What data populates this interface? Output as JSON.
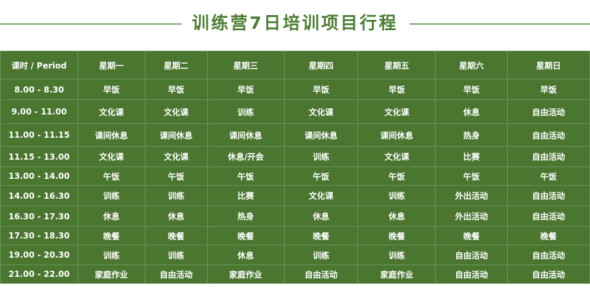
{
  "title": "训练营7日培训项目行程",
  "colors": {
    "table_bg": "#4a7630",
    "title": "#4c7f35"
  },
  "headers": [
    "课时 / Period",
    "星期一",
    "星期二",
    "星期三",
    "星期四",
    "星期五",
    "星期六",
    "星期日"
  ],
  "rows": [
    [
      "8.00 - 8.30",
      "早饭",
      "早饭",
      "早饭",
      "早饭",
      "早饭",
      "早饭",
      "早饭"
    ],
    [
      "9.00 - 11.00",
      "文化课",
      "文化课",
      "训练",
      "文化课",
      "文化课",
      "休息",
      "自由活动"
    ],
    [
      "11.00 - 11.15",
      "课间休息",
      "课间休息",
      "课间休息",
      "课间休息",
      "课间休息",
      "热身",
      "自由活动"
    ],
    [
      "11.15 - 13.00",
      "文化课",
      "文化课",
      "休息/开会",
      "训练",
      "文化课",
      "比赛",
      "自由活动"
    ],
    [
      "13.00 - 14.00",
      "午饭",
      "午饭",
      "午饭",
      "午饭",
      "午饭",
      "午饭",
      "午饭"
    ],
    [
      "14.00 - 16.30",
      "训练",
      "训练",
      "比赛",
      "文化课",
      "训练",
      "外出活动",
      "自由活动"
    ],
    [
      "16.30 - 17.30",
      "休息",
      "休息",
      "热身",
      "休息",
      "休息",
      "外出活动",
      "自由活动"
    ],
    [
      "17.30 - 18.30",
      "晚餐",
      "晚餐",
      "晚餐",
      "晚餐",
      "晚餐",
      "晚餐",
      "晚餐"
    ],
    [
      "19.00 - 20.30",
      "训练",
      "训练",
      "休息",
      "训练",
      "训练",
      "自由活动",
      "自由活动"
    ],
    [
      "21.00 - 22.00",
      "家庭作业",
      "自由活动",
      "家庭作业",
      "自由活动",
      "家庭作业",
      "自由活动",
      "自由活动"
    ]
  ]
}
